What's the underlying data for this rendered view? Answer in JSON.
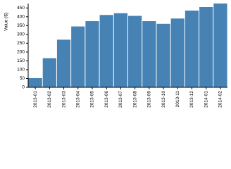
{
  "chart_data": {
    "type": "bar",
    "y_label": "Value ($)",
    "categories": [
      "2013-01",
      "2013-02",
      "2013-03",
      "2013-04",
      "2013-05",
      "2013-06",
      "2013-07",
      "2013-08",
      "2013-09",
      "2013-10",
      "2013-11",
      "2013-12",
      "2014-01",
      "2014-02"
    ],
    "values": [
      52,
      165,
      270,
      345,
      375,
      410,
      420,
      405,
      375,
      360,
      390,
      435,
      455,
      475
    ],
    "color": "#4682b4",
    "ylim": [
      0,
      475
    ],
    "yticks": [
      0,
      50,
      100,
      150,
      200,
      250,
      300,
      350,
      400,
      450
    ],
    "grid": false
  }
}
